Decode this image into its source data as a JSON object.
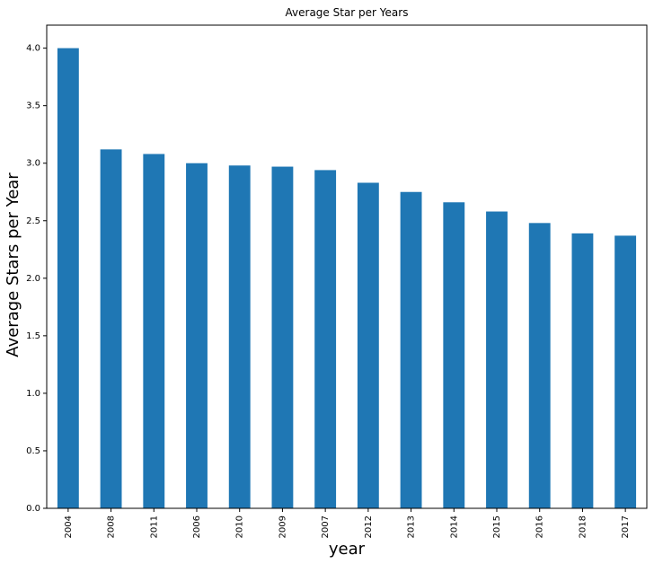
{
  "chart_data": {
    "type": "bar",
    "title": "Average Star per Years",
    "xlabel": "year",
    "ylabel": "Average Stars per Year",
    "categories": [
      "2004",
      "2008",
      "2011",
      "2006",
      "2010",
      "2009",
      "2007",
      "2012",
      "2013",
      "2014",
      "2015",
      "2016",
      "2018",
      "2017"
    ],
    "values": [
      4.0,
      3.12,
      3.08,
      3.0,
      2.98,
      2.97,
      2.94,
      2.83,
      2.75,
      2.66,
      2.58,
      2.48,
      2.39,
      2.37
    ],
    "ylim": [
      0,
      4.2
    ],
    "yticks": [
      "0.0",
      "0.5",
      "1.0",
      "1.5",
      "2.0",
      "2.5",
      "3.0",
      "3.5",
      "4.0"
    ],
    "grid": false,
    "bar_color": "#1f77b4"
  }
}
